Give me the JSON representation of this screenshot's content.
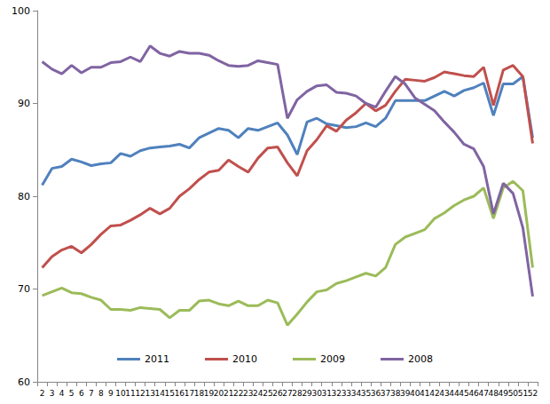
{
  "chart_data": {
    "type": "line",
    "categories": [
      "2",
      "3",
      "4",
      "5",
      "6",
      "7",
      "8",
      "9",
      "10",
      "11",
      "12",
      "13",
      "14",
      "15",
      "16",
      "17",
      "18",
      "19",
      "20",
      "21",
      "22",
      "23",
      "24",
      "25",
      "26",
      "27",
      "28",
      "29",
      "30",
      "31",
      "32",
      "33",
      "34",
      "35",
      "36",
      "37",
      "38",
      "39",
      "40",
      "41",
      "42",
      "43",
      "44",
      "45",
      "46",
      "47",
      "48",
      "49",
      "50",
      "51",
      "52"
    ],
    "ylim": [
      60,
      100
    ],
    "yticks": [
      60,
      70,
      80,
      90,
      100
    ],
    "grid": false,
    "legend": "bottom",
    "series": [
      {
        "name": "2011",
        "color": "#4F81BD",
        "values": [
          81.2,
          83,
          83.2,
          84,
          83.7,
          83.3,
          83.5,
          83.6,
          84.6,
          84.3,
          84.9,
          85.2,
          85.3,
          85.4,
          85.6,
          85.2,
          86.3,
          86.8,
          87.3,
          87.1,
          86.3,
          87.3,
          87.1,
          87.5,
          87.9,
          86.6,
          84.5,
          88,
          88.4,
          87.8,
          87.6,
          87.4,
          87.5,
          87.9,
          87.5,
          88.4,
          90.3,
          90.3,
          90.3,
          90.3,
          90.8,
          91.3,
          90.8,
          91.4,
          91.7,
          92.2,
          88.7,
          92.1,
          92.1,
          92.9,
          86.3
        ]
      },
      {
        "name": "2010",
        "color": "#C0504D",
        "values": [
          72.3,
          73.5,
          74.2,
          74.6,
          73.9,
          74.8,
          75.9,
          76.8,
          76.9,
          77.4,
          78,
          78.7,
          78.1,
          78.7,
          80,
          80.8,
          81.8,
          82.6,
          82.8,
          83.9,
          83.2,
          82.6,
          84.1,
          85.2,
          85.3,
          83.6,
          82.2,
          84.9,
          86.1,
          87.6,
          87,
          88.2,
          89,
          90,
          89.2,
          89.8,
          91.3,
          92.6,
          92.5,
          92.4,
          92.8,
          93.4,
          93.2,
          93,
          92.9,
          93.9,
          89.8,
          93.6,
          94.1,
          92.9,
          85.7
        ]
      },
      {
        "name": "2009",
        "color": "#9BBB59",
        "values": [
          69.3,
          69.7,
          70.1,
          69.6,
          69.5,
          69.1,
          68.8,
          67.8,
          67.8,
          67.7,
          68,
          67.9,
          67.8,
          66.9,
          67.7,
          67.7,
          68.7,
          68.8,
          68.4,
          68.2,
          68.7,
          68.2,
          68.2,
          68.8,
          68.5,
          66.1,
          67.3,
          68.6,
          69.7,
          69.9,
          70.6,
          70.9,
          71.3,
          71.7,
          71.4,
          72.3,
          74.8,
          75.6,
          76,
          76.4,
          77.6,
          78.2,
          79,
          79.6,
          80,
          80.9,
          77.6,
          80.9,
          81.6,
          80.6,
          72.3
        ]
      },
      {
        "name": "2008",
        "color": "#8064A2",
        "values": [
          94.5,
          93.7,
          93.2,
          94.1,
          93.3,
          93.9,
          93.9,
          94.4,
          94.5,
          95,
          94.5,
          96.2,
          95.4,
          95.1,
          95.6,
          95.4,
          95.4,
          95.2,
          94.6,
          94.1,
          94,
          94.1,
          94.6,
          94.4,
          94.2,
          88.4,
          90.4,
          91.3,
          91.9,
          92,
          91.2,
          91.1,
          90.8,
          90,
          89.6,
          91.3,
          92.9,
          92.1,
          90.6,
          89.9,
          89.2,
          88,
          86.9,
          85.6,
          85.1,
          83.2,
          78.1,
          81.4,
          80.3,
          76.6,
          69.2
        ]
      }
    ]
  }
}
